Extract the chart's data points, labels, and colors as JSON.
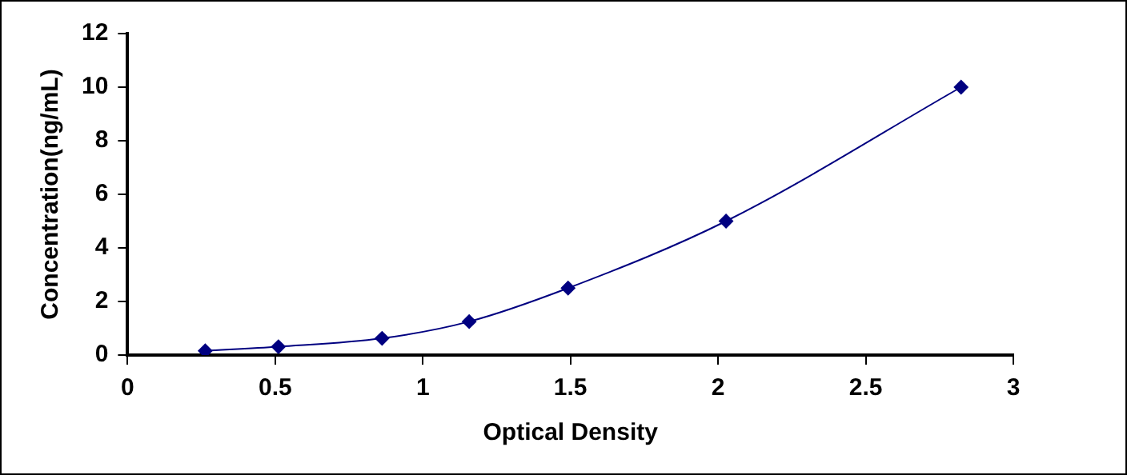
{
  "chart_data": {
    "type": "line",
    "xlabel": "Optical Density",
    "ylabel": "Concentration(ng/mL)",
    "x": [
      0.263,
      0.511,
      0.862,
      1.157,
      1.492,
      2.027,
      2.823
    ],
    "series": [
      {
        "color": "#000080",
        "values": [
          0.156,
          0.312,
          0.625,
          1.25,
          2.5,
          5,
          10
        ]
      }
    ],
    "xlim": [
      0,
      3
    ],
    "xticks": [
      0,
      0.5,
      1,
      1.5,
      2,
      2.5,
      3
    ],
    "ylim": [
      0,
      12
    ],
    "yticks": [
      0,
      2,
      4,
      6,
      8,
      10,
      12
    ],
    "grid": false,
    "legend": false,
    "marker": "diamond",
    "line_style": "solid"
  }
}
